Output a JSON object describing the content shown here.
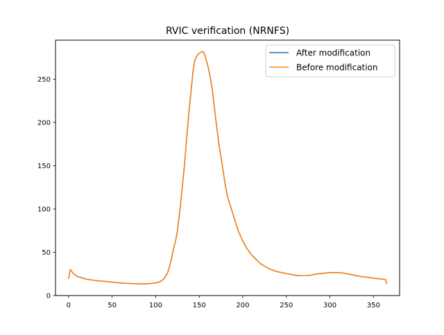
{
  "chart_data": {
    "type": "line",
    "title": "RVIC verification (NRNFS)",
    "xlabel": "",
    "ylabel": "",
    "xlim": [
      -15,
      380
    ],
    "ylim": [
      0,
      295
    ],
    "xticks": [
      0,
      50,
      100,
      150,
      200,
      250,
      300,
      350
    ],
    "yticks": [
      0,
      50,
      100,
      150,
      200,
      250
    ],
    "grid": false,
    "legend_position": "top-right",
    "series": [
      {
        "name": "After modification",
        "color": "#1f77b4",
        "x": [
          0,
          2,
          5,
          10,
          20,
          30,
          40,
          50,
          60,
          70,
          80,
          90,
          95,
          100,
          105,
          108,
          110,
          113,
          115,
          118,
          120,
          123,
          125,
          128,
          130,
          133,
          135,
          138,
          140,
          143,
          145,
          148,
          150,
          152,
          154,
          155,
          156,
          158,
          160,
          163,
          165,
          168,
          170,
          173,
          175,
          178,
          180,
          183,
          185,
          190,
          195,
          200,
          205,
          210,
          215,
          220,
          225,
          230,
          235,
          240,
          245,
          250,
          255,
          260,
          265,
          270,
          275,
          280,
          285,
          290,
          295,
          300,
          305,
          310,
          315,
          320,
          325,
          330,
          335,
          340,
          345,
          350,
          355,
          360,
          364,
          365
        ],
        "y": [
          20,
          30,
          26,
          22,
          19,
          17.5,
          16.5,
          15.5,
          14.5,
          14,
          13.5,
          13.5,
          14,
          14.5,
          16,
          18,
          20,
          25,
          30,
          42,
          52,
          64,
          75,
          100,
          120,
          150,
          175,
          210,
          230,
          260,
          272,
          278,
          280,
          281,
          282,
          281,
          279,
          272,
          265,
          250,
          238,
          212,
          195,
          172,
          160,
          140,
          127,
          112,
          106,
          90,
          74,
          63,
          54,
          47,
          42,
          37,
          34,
          31,
          29,
          27.5,
          26.5,
          25.5,
          24.5,
          23.5,
          23,
          23,
          23,
          24,
          25,
          25.5,
          26,
          26.5,
          26.5,
          26.5,
          26,
          25,
          24,
          23,
          22,
          21.5,
          21,
          20,
          19.5,
          19,
          18.5,
          14
        ]
      },
      {
        "name": "Before modification",
        "color": "#ff7f0e",
        "x": [
          0,
          2,
          5,
          10,
          20,
          30,
          40,
          50,
          60,
          70,
          80,
          90,
          95,
          100,
          105,
          108,
          110,
          113,
          115,
          118,
          120,
          123,
          125,
          128,
          130,
          133,
          135,
          138,
          140,
          143,
          145,
          148,
          150,
          152,
          154,
          155,
          156,
          158,
          160,
          163,
          165,
          168,
          170,
          173,
          175,
          178,
          180,
          183,
          185,
          190,
          195,
          200,
          205,
          210,
          215,
          220,
          225,
          230,
          235,
          240,
          245,
          250,
          255,
          260,
          265,
          270,
          275,
          280,
          285,
          290,
          295,
          300,
          305,
          310,
          315,
          320,
          325,
          330,
          335,
          340,
          345,
          350,
          355,
          360,
          364,
          365
        ],
        "y": [
          20,
          30,
          26,
          22,
          19,
          17.5,
          16.5,
          15.5,
          14.5,
          14,
          13.5,
          13.5,
          14,
          14.5,
          16,
          18,
          20,
          25,
          30,
          42,
          52,
          64,
          75,
          100,
          120,
          150,
          175,
          210,
          230,
          260,
          272,
          278,
          280,
          281,
          282,
          281,
          279,
          272,
          265,
          250,
          238,
          212,
          195,
          172,
          160,
          140,
          127,
          112,
          106,
          90,
          74,
          63,
          54,
          47,
          42,
          37,
          34,
          31,
          29,
          27.5,
          26.5,
          25.5,
          24.5,
          23.5,
          23,
          23,
          23,
          24,
          25,
          25.5,
          26,
          26.5,
          26.5,
          26.5,
          26,
          25,
          24,
          23,
          22,
          21.5,
          21,
          20,
          19.5,
          19,
          18.5,
          14
        ]
      }
    ]
  }
}
